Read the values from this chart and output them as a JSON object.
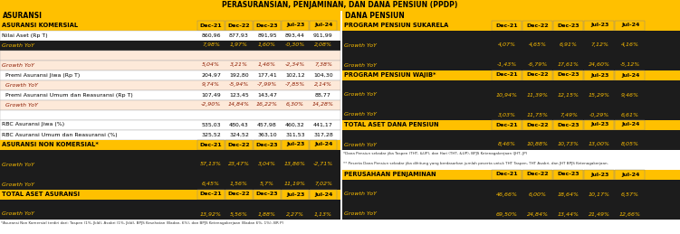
{
  "title": "PERASURANSIAN, PENJAMINAN, DAN DANA PENSIUN (PPDP)",
  "col_headers": [
    "Dec-21",
    "Dec-22",
    "Dec-23",
    "Jul-23",
    "Jul-24"
  ],
  "left_rows": [
    {
      "label": "ASURANSI KOMERSIAL",
      "vals": [
        "Dec-21",
        "Dec-22",
        "Dec-23",
        "Jul-23",
        "Jul-24"
      ],
      "style": "gold_header"
    },
    {
      "label": "Nilai Aset (Rp T)",
      "vals": [
        "860,96",
        "877,93",
        "891,95",
        "893,44",
        "911,99"
      ],
      "style": "white"
    },
    {
      "label": "Growth YoY",
      "vals": [
        "7,98%",
        "1,97%",
        "1,60%",
        "-0,30%",
        "2,08%"
      ],
      "style": "dark_italic"
    },
    {
      "label": "",
      "vals": [
        "",
        "",
        "",
        "",
        ""
      ],
      "style": "pink"
    },
    {
      "label": "Growth YoY",
      "vals": [
        "5,04%",
        "3,21%",
        "1,46%",
        "-2,34%",
        "7,38%"
      ],
      "style": "pink_italic"
    },
    {
      "label": "  Premi Asuransi Jiwa (Rp T)",
      "vals": [
        "204,97",
        "192,80",
        "177,41",
        "102,12",
        "104,30"
      ],
      "style": "white"
    },
    {
      "label": "  Growth YoY",
      "vals": [
        "9,74%",
        "-5,94%",
        "-7,99%",
        "-7,85%",
        "2,14%"
      ],
      "style": "pink_italic"
    },
    {
      "label": "  Premi Asuransi Umum dan Reasuransi (Rp T)",
      "vals": [
        "107,49",
        "123,45",
        "143,47",
        "",
        "88,77"
      ],
      "style": "white"
    },
    {
      "label": "  Growth YoY",
      "vals": [
        "-2,90%",
        "14,84%",
        "16,22%",
        "6,30%",
        "14,28%"
      ],
      "style": "pink_italic"
    },
    {
      "label": "",
      "vals": [
        "",
        "",
        "",
        "",
        ""
      ],
      "style": "white"
    },
    {
      "label": "RBC Asuransi Jiwa (%)",
      "vals": [
        "535,03",
        "480,43",
        "457,98",
        "460,32",
        "441,17"
      ],
      "style": "white"
    },
    {
      "label": "RBC Asuransi Umum dan Reasuransi (%)",
      "vals": [
        "325,52",
        "324,52",
        "363,10",
        "311,53",
        "317,28"
      ],
      "style": "white"
    },
    {
      "label": "ASURANSI NON KOMERSIAL*",
      "vals": [
        "Dec-21",
        "Dec-22",
        "Dec-23",
        "Jul-23",
        "Jul-24"
      ],
      "style": "gold_header"
    },
    {
      "label": "",
      "vals": [
        "",
        "",
        "",
        "",
        ""
      ],
      "style": "dark"
    },
    {
      "label": "Growth YoY",
      "vals": [
        "57,13%",
        "23,47%",
        "3,04%",
        "13,86%",
        "-2,71%"
      ],
      "style": "dark_italic"
    },
    {
      "label": "",
      "vals": [
        "",
        "",
        "",
        "",
        ""
      ],
      "style": "dark"
    },
    {
      "label": "Growth YoY",
      "vals": [
        "6,45%",
        "1,56%",
        "5,7%",
        "11,19%",
        "7,02%"
      ],
      "style": "dark_italic"
    },
    {
      "label": "TOTAL ASET ASURANSI",
      "vals": [
        "Dec-21",
        "Dec-22",
        "Dec-23",
        "Jul-23",
        "Jul-24"
      ],
      "style": "gold_header"
    },
    {
      "label": "",
      "vals": [
        "",
        "",
        "",
        "",
        ""
      ],
      "style": "dark"
    },
    {
      "label": "Growth YoY",
      "vals": [
        "13,92%",
        "5,56%",
        "1,88%",
        "2,27%",
        "1,13%"
      ],
      "style": "dark_italic"
    }
  ],
  "right_rows": [
    {
      "label": "PROGRAM PENSIUN SUKARELA",
      "vals": [
        "Dec-21",
        "Dec-22",
        "Dec-23",
        "Jul-23",
        "Jul-24"
      ],
      "style": "gold_header"
    },
    {
      "label": "",
      "vals": [
        "",
        "",
        "",
        "",
        ""
      ],
      "style": "dark"
    },
    {
      "label": "Growth YoY",
      "vals": [
        "4,07%",
        "4,65%",
        "6,91%",
        "7,12%",
        "4,16%"
      ],
      "style": "dark_italic"
    },
    {
      "label": "",
      "vals": [
        "",
        "",
        "",
        "",
        ""
      ],
      "style": "dark"
    },
    {
      "label": "Growth YoY",
      "vals": [
        "-1,43%",
        "-6,79%",
        "17,61%",
        "24,60%",
        "-5,12%"
      ],
      "style": "dark_italic"
    },
    {
      "label": "PROGRAM PENSIUN WAJIB*",
      "vals": [
        "Dec-21",
        "Dec-22",
        "Dec-23",
        "Jul-23",
        "Jul-24"
      ],
      "style": "gold_header"
    },
    {
      "label": "",
      "vals": [
        "",
        "",
        "",
        "",
        ""
      ],
      "style": "dark"
    },
    {
      "label": "Growth YoY",
      "vals": [
        "10,94%",
        "11,39%",
        "12,15%",
        "15,29%",
        "9,46%"
      ],
      "style": "dark_italic"
    },
    {
      "label": "",
      "vals": [
        "",
        "",
        "",
        "",
        ""
      ],
      "style": "dark"
    },
    {
      "label": "Growth YoY",
      "vals": [
        "3,03%",
        "11,75%",
        "7,49%",
        "-0,29%",
        "6,61%"
      ],
      "style": "dark_italic"
    },
    {
      "label": "TOTAL ASET DANA PENSIUN",
      "vals": [
        "Dec-21",
        "Dec-22",
        "Dec-23",
        "Jul-23",
        "Jul-24"
      ],
      "style": "gold_header"
    },
    {
      "label": "",
      "vals": [
        "",
        "",
        "",
        "",
        ""
      ],
      "style": "dark"
    },
    {
      "label": "Growth YoY",
      "vals": [
        "8,46%",
        "10,88%",
        "10,73%",
        "13,00%",
        "8,05%"
      ],
      "style": "dark_italic"
    },
    {
      "label": "footnote1",
      "vals": [
        "",
        "",
        "",
        "",
        ""
      ],
      "style": "footnote"
    },
    {
      "label": "footnote2",
      "vals": [
        "",
        "",
        "",
        "",
        ""
      ],
      "style": "footnote"
    },
    {
      "label": "PERUSAHAAN PENJAMINAN",
      "vals": [
        "Dec-21",
        "Dec-22",
        "Dec-23",
        "Jul-23",
        "Jul-24"
      ],
      "style": "gold_header"
    },
    {
      "label": "",
      "vals": [
        "",
        "",
        "",
        "",
        ""
      ],
      "style": "dark"
    },
    {
      "label": "Growth YoY",
      "vals": [
        "46,66%",
        "6,00%",
        "18,64%",
        "10,17%",
        "6,57%"
      ],
      "style": "dark_italic"
    },
    {
      "label": "",
      "vals": [
        "",
        "",
        "",
        "",
        ""
      ],
      "style": "dark"
    },
    {
      "label": "Growth YoY",
      "vals": [
        "69,50%",
        "24,84%",
        "13,44%",
        "21,49%",
        "12,66%"
      ],
      "style": "dark_italic"
    }
  ],
  "footnote_left": "*Asuransi Non Komersial terdiri dari: Taspen (1%, Jkld), Asabri (1%, Jkld), BPJS Kesehatan (Badan, 6%), dan BPJS Ketenagakerjaan (Badan 6%, 1%), BR P)",
  "footnote_r1": "*Dana Pensiun sekadar jika Taspen (THT, &UP), dan Hari (THT, &UP), BPJS Ketenagakerjaan (JHT, JP)",
  "footnote_r2": "** Peserta Dana Pensiun sekadar jika dihitung yang berdasarkan jumlah peserta untuk THT Taspen, THT Asabri, dan JHT BPJS Ketenagakerjaan."
}
